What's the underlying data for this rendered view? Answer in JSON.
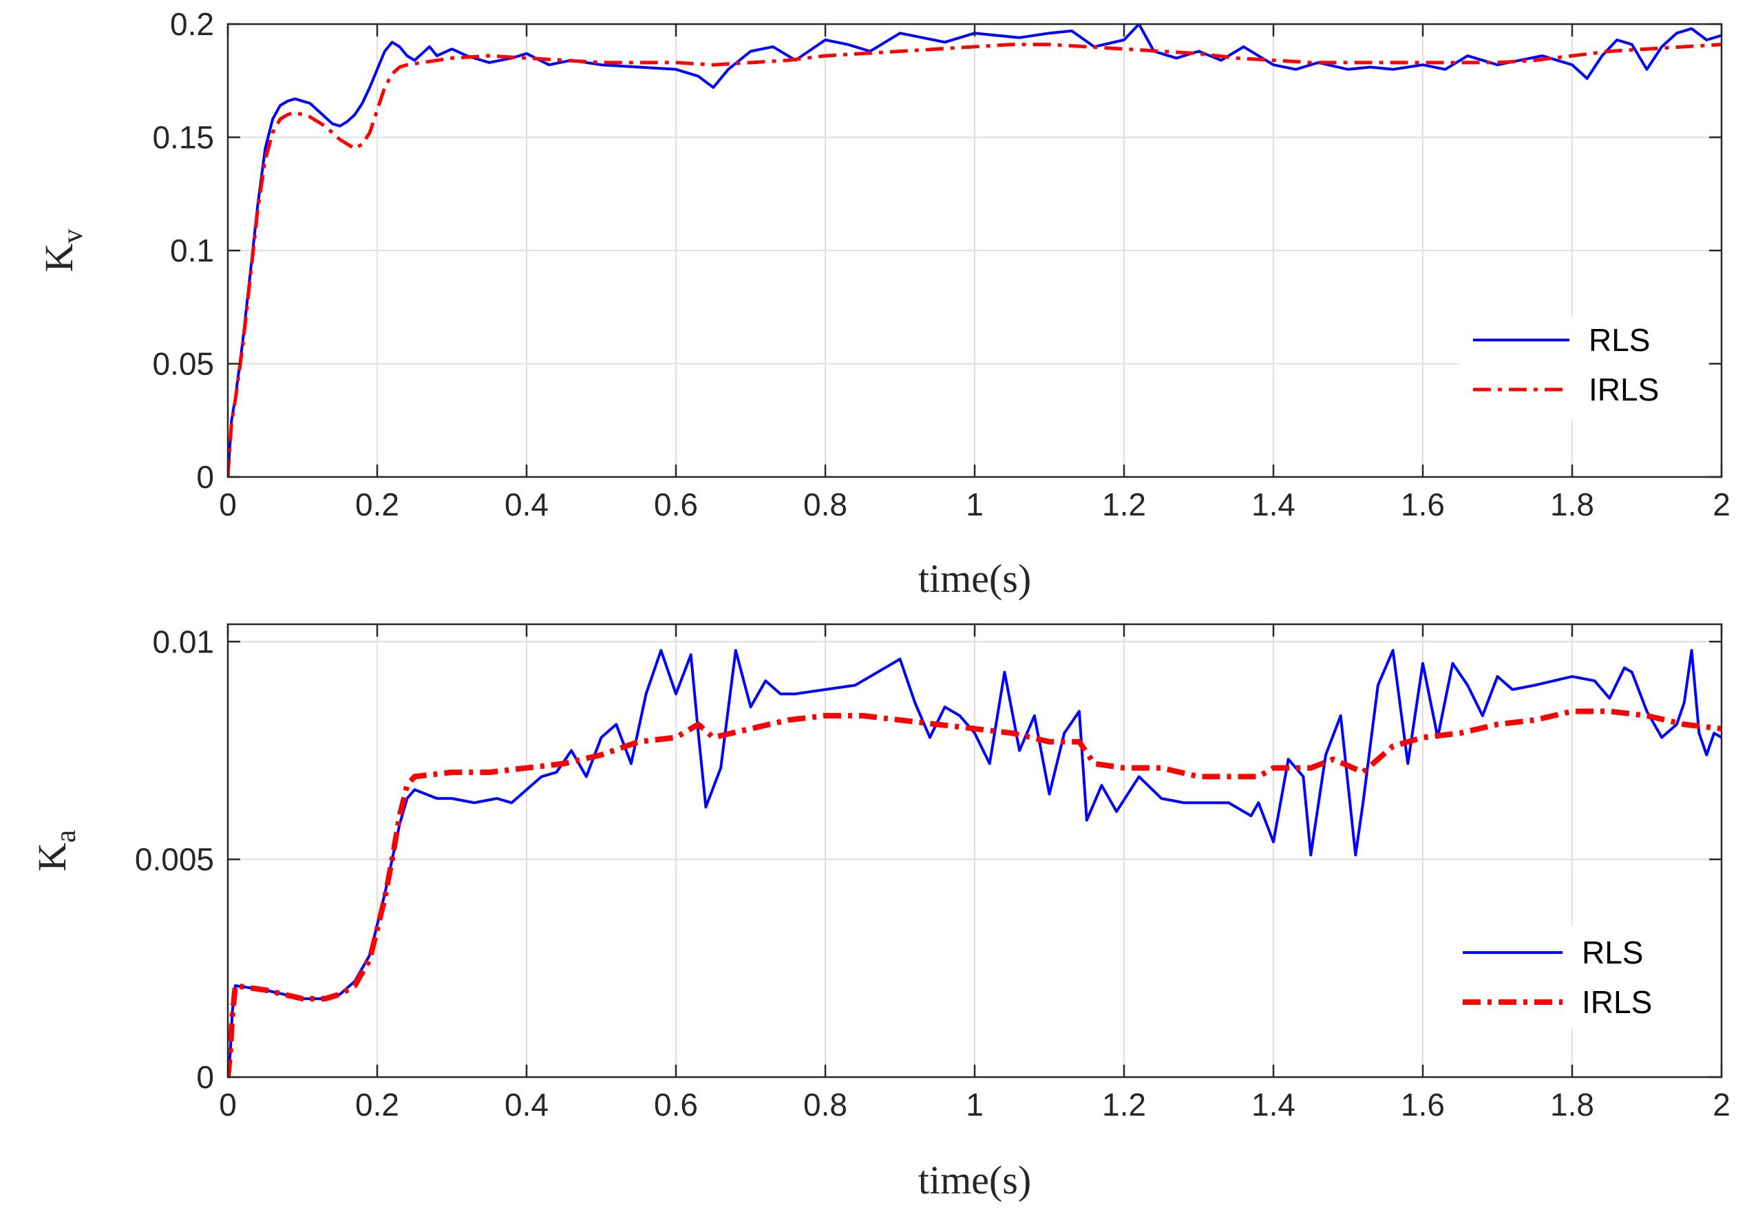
{
  "chart_data": [
    {
      "type": "line",
      "title": "",
      "xlabel": "time(s)",
      "ylabel": "K",
      "ylabel_sub": "v",
      "xlim": [
        0,
        2
      ],
      "ylim": [
        0,
        0.2
      ],
      "xticks": [
        0,
        0.2,
        0.4,
        0.6,
        0.8,
        1,
        1.2,
        1.4,
        1.6,
        1.8,
        2
      ],
      "xtick_labels": [
        "0",
        "0.2",
        "0.4",
        "0.6",
        "0.8",
        "1",
        "1.2",
        "1.4",
        "1.6",
        "1.8",
        "2"
      ],
      "yticks": [
        0,
        0.05,
        0.1,
        0.15,
        0.2
      ],
      "ytick_labels": [
        "0",
        "0.05",
        "0.1",
        "0.15",
        "0.2"
      ],
      "grid": true,
      "legend_position": "lower-right",
      "series": [
        {
          "name": "RLS",
          "color": "#0000ff",
          "style": "solid",
          "x": [
            0,
            0.005,
            0.01,
            0.02,
            0.03,
            0.04,
            0.05,
            0.06,
            0.07,
            0.08,
            0.09,
            0.1,
            0.11,
            0.12,
            0.13,
            0.14,
            0.15,
            0.16,
            0.17,
            0.18,
            0.19,
            0.2,
            0.21,
            0.22,
            0.23,
            0.24,
            0.25,
            0.26,
            0.27,
            0.28,
            0.3,
            0.32,
            0.35,
            0.38,
            0.4,
            0.43,
            0.46,
            0.5,
            0.55,
            0.6,
            0.63,
            0.65,
            0.67,
            0.7,
            0.73,
            0.76,
            0.8,
            0.83,
            0.86,
            0.9,
            0.93,
            0.96,
            1.0,
            1.03,
            1.06,
            1.1,
            1.13,
            1.16,
            1.2,
            1.22,
            1.24,
            1.27,
            1.3,
            1.33,
            1.36,
            1.4,
            1.43,
            1.46,
            1.5,
            1.53,
            1.56,
            1.6,
            1.63,
            1.66,
            1.7,
            1.73,
            1.76,
            1.8,
            1.82,
            1.84,
            1.86,
            1.88,
            1.9,
            1.92,
            1.94,
            1.96,
            1.98,
            2.0
          ],
          "y": [
            0,
            0.025,
            0.035,
            0.06,
            0.09,
            0.12,
            0.145,
            0.158,
            0.164,
            0.166,
            0.167,
            0.166,
            0.165,
            0.162,
            0.159,
            0.156,
            0.155,
            0.157,
            0.16,
            0.165,
            0.172,
            0.18,
            0.188,
            0.192,
            0.19,
            0.186,
            0.184,
            0.187,
            0.19,
            0.186,
            0.189,
            0.186,
            0.183,
            0.185,
            0.187,
            0.182,
            0.184,
            0.182,
            0.181,
            0.18,
            0.177,
            0.172,
            0.18,
            0.188,
            0.19,
            0.184,
            0.193,
            0.191,
            0.188,
            0.196,
            0.194,
            0.192,
            0.196,
            0.195,
            0.194,
            0.196,
            0.197,
            0.19,
            0.193,
            0.2,
            0.188,
            0.185,
            0.188,
            0.184,
            0.19,
            0.182,
            0.18,
            0.183,
            0.18,
            0.181,
            0.18,
            0.182,
            0.18,
            0.186,
            0.182,
            0.184,
            0.186,
            0.182,
            0.176,
            0.186,
            0.193,
            0.191,
            0.18,
            0.19,
            0.196,
            0.198,
            0.193,
            0.195
          ]
        },
        {
          "name": "IRLS",
          "color": "#ff0000",
          "style": "dashdot",
          "x": [
            0,
            0.005,
            0.01,
            0.02,
            0.03,
            0.04,
            0.05,
            0.06,
            0.07,
            0.08,
            0.09,
            0.1,
            0.11,
            0.12,
            0.13,
            0.14,
            0.15,
            0.16,
            0.17,
            0.18,
            0.19,
            0.2,
            0.21,
            0.22,
            0.23,
            0.24,
            0.26,
            0.3,
            0.35,
            0.4,
            0.45,
            0.5,
            0.55,
            0.6,
            0.65,
            0.7,
            0.75,
            0.8,
            0.85,
            0.9,
            0.95,
            1.0,
            1.05,
            1.1,
            1.15,
            1.2,
            1.25,
            1.3,
            1.35,
            1.4,
            1.45,
            1.5,
            1.55,
            1.6,
            1.65,
            1.7,
            1.75,
            1.8,
            1.85,
            1.9,
            1.95,
            2.0
          ],
          "y": [
            0,
            0.024,
            0.034,
            0.058,
            0.088,
            0.118,
            0.14,
            0.152,
            0.158,
            0.16,
            0.161,
            0.16,
            0.159,
            0.157,
            0.155,
            0.152,
            0.149,
            0.147,
            0.145,
            0.147,
            0.152,
            0.162,
            0.172,
            0.178,
            0.181,
            0.182,
            0.183,
            0.185,
            0.186,
            0.185,
            0.184,
            0.183,
            0.183,
            0.183,
            0.182,
            0.183,
            0.184,
            0.186,
            0.187,
            0.188,
            0.189,
            0.19,
            0.191,
            0.191,
            0.19,
            0.189,
            0.188,
            0.187,
            0.185,
            0.184,
            0.183,
            0.183,
            0.183,
            0.183,
            0.183,
            0.183,
            0.184,
            0.186,
            0.188,
            0.189,
            0.19,
            0.191
          ]
        }
      ]
    },
    {
      "type": "line",
      "title": "",
      "xlabel": "time(s)",
      "ylabel": "K",
      "ylabel_sub": "a",
      "xlim": [
        0,
        2
      ],
      "ylim": [
        0,
        0.0104
      ],
      "xticks": [
        0,
        0.2,
        0.4,
        0.6,
        0.8,
        1,
        1.2,
        1.4,
        1.6,
        1.8,
        2
      ],
      "xtick_labels": [
        "0",
        "0.2",
        "0.4",
        "0.6",
        "0.8",
        "1",
        "1.2",
        "1.4",
        "1.6",
        "1.8",
        "2"
      ],
      "yticks": [
        0,
        0.005,
        0.01
      ],
      "ytick_labels": [
        "0",
        "0.005",
        "0.01"
      ],
      "grid": true,
      "legend_position": "lower-right",
      "series": [
        {
          "name": "RLS",
          "color": "#0000ff",
          "style": "solid",
          "x": [
            0,
            0.003,
            0.006,
            0.01,
            0.05,
            0.1,
            0.13,
            0.15,
            0.17,
            0.19,
            0.2,
            0.21,
            0.22,
            0.23,
            0.24,
            0.25,
            0.28,
            0.3,
            0.33,
            0.36,
            0.38,
            0.4,
            0.42,
            0.44,
            0.46,
            0.48,
            0.5,
            0.52,
            0.54,
            0.56,
            0.58,
            0.6,
            0.62,
            0.63,
            0.64,
            0.66,
            0.68,
            0.7,
            0.72,
            0.74,
            0.76,
            0.8,
            0.84,
            0.88,
            0.9,
            0.92,
            0.94,
            0.96,
            0.98,
            1.0,
            1.02,
            1.04,
            1.06,
            1.08,
            1.1,
            1.12,
            1.14,
            1.15,
            1.17,
            1.19,
            1.22,
            1.25,
            1.28,
            1.31,
            1.34,
            1.37,
            1.38,
            1.4,
            1.42,
            1.44,
            1.45,
            1.47,
            1.49,
            1.51,
            1.52,
            1.54,
            1.56,
            1.58,
            1.6,
            1.62,
            1.64,
            1.66,
            1.68,
            1.7,
            1.72,
            1.75,
            1.8,
            1.83,
            1.85,
            1.87,
            1.88,
            1.9,
            1.92,
            1.94,
            1.95,
            1.96,
            1.97,
            1.98,
            1.99,
            2.0
          ],
          "y": [
            0,
            0.0005,
            0.0015,
            0.0021,
            0.002,
            0.0018,
            0.0018,
            0.0019,
            0.0022,
            0.0028,
            0.0035,
            0.0042,
            0.005,
            0.0058,
            0.0064,
            0.0066,
            0.0064,
            0.0064,
            0.0063,
            0.0064,
            0.0063,
            0.0066,
            0.0069,
            0.007,
            0.0075,
            0.0069,
            0.0078,
            0.0081,
            0.0072,
            0.0088,
            0.0098,
            0.0088,
            0.0097,
            0.0079,
            0.0062,
            0.0071,
            0.0098,
            0.0085,
            0.0091,
            0.0088,
            0.0088,
            0.0089,
            0.009,
            0.0094,
            0.0096,
            0.0086,
            0.0078,
            0.0085,
            0.0083,
            0.0079,
            0.0072,
            0.0093,
            0.0075,
            0.0083,
            0.0065,
            0.0079,
            0.0084,
            0.0059,
            0.0067,
            0.0061,
            0.0069,
            0.0064,
            0.0063,
            0.0063,
            0.0063,
            0.006,
            0.0063,
            0.0054,
            0.0073,
            0.0069,
            0.0051,
            0.0074,
            0.0083,
            0.0051,
            0.0063,
            0.009,
            0.0098,
            0.0072,
            0.0095,
            0.0078,
            0.0095,
            0.009,
            0.0083,
            0.0092,
            0.0089,
            0.009,
            0.0092,
            0.0091,
            0.0087,
            0.0094,
            0.0093,
            0.0084,
            0.0078,
            0.0081,
            0.0086,
            0.0098,
            0.0079,
            0.0074,
            0.0079,
            0.0078
          ]
        },
        {
          "name": "IRLS",
          "color": "#ff0000",
          "style": "dashdot",
          "x": [
            0,
            0.003,
            0.006,
            0.01,
            0.05,
            0.1,
            0.13,
            0.15,
            0.17,
            0.19,
            0.2,
            0.21,
            0.22,
            0.23,
            0.24,
            0.25,
            0.3,
            0.35,
            0.4,
            0.45,
            0.5,
            0.55,
            0.6,
            0.63,
            0.65,
            0.7,
            0.75,
            0.8,
            0.85,
            0.9,
            0.95,
            1.0,
            1.05,
            1.1,
            1.14,
            1.16,
            1.2,
            1.25,
            1.3,
            1.35,
            1.38,
            1.4,
            1.45,
            1.48,
            1.52,
            1.56,
            1.6,
            1.65,
            1.7,
            1.75,
            1.8,
            1.85,
            1.9,
            1.95,
            2.0
          ],
          "y": [
            0,
            0.0005,
            0.0014,
            0.0021,
            0.002,
            0.0018,
            0.0018,
            0.0019,
            0.0021,
            0.0027,
            0.0034,
            0.0041,
            0.005,
            0.006,
            0.0067,
            0.0069,
            0.007,
            0.007,
            0.0071,
            0.0072,
            0.0074,
            0.0077,
            0.0078,
            0.0081,
            0.0078,
            0.008,
            0.0082,
            0.0083,
            0.0083,
            0.0082,
            0.0081,
            0.008,
            0.0079,
            0.0077,
            0.0077,
            0.0072,
            0.0071,
            0.0071,
            0.0069,
            0.0069,
            0.0069,
            0.0071,
            0.0071,
            0.0073,
            0.007,
            0.0076,
            0.0078,
            0.0079,
            0.0081,
            0.0082,
            0.0084,
            0.0084,
            0.0083,
            0.0081,
            0.008
          ]
        }
      ]
    }
  ]
}
